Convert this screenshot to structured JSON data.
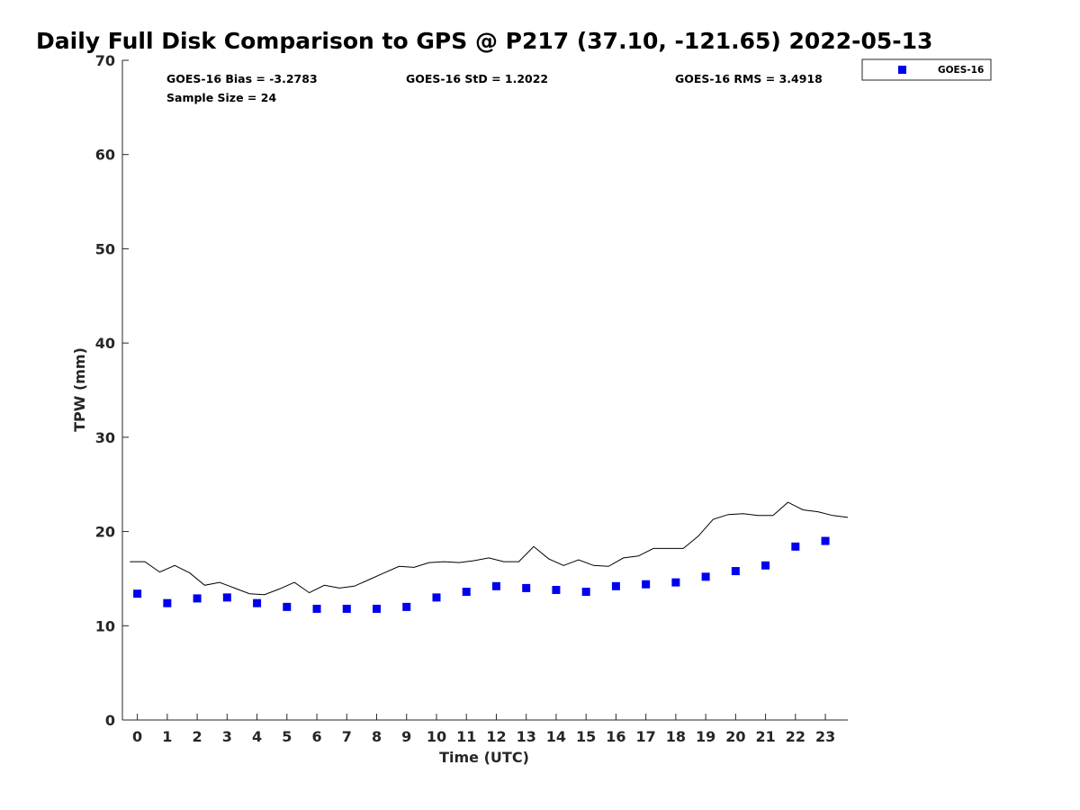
{
  "chart_data": {
    "type": "scatter",
    "title": "Daily Full Disk Comparison to GPS @ P217 (37.10, -121.65) 2022-05-13",
    "xlabel": "Time (UTC)",
    "ylabel": "TPW (mm)",
    "xlim": [
      -0.5,
      23.75
    ],
    "ylim": [
      0,
      70
    ],
    "x_ticks": [
      0,
      1,
      2,
      3,
      4,
      5,
      6,
      7,
      8,
      9,
      10,
      11,
      12,
      13,
      14,
      15,
      16,
      17,
      18,
      19,
      20,
      21,
      22,
      23
    ],
    "y_ticks": [
      0,
      10,
      20,
      30,
      40,
      50,
      60,
      70
    ],
    "grid": false,
    "legend_position": "outside top-right",
    "stats": {
      "bias": "GOES-16 Bias = -3.2783",
      "std": "GOES-16 StD = 1.2022",
      "rms": "GOES-16 RMS = 3.4918",
      "sample_size": "Sample Size = 24"
    },
    "series": [
      {
        "name": "GOES-16",
        "kind": "marker",
        "marker": "square",
        "color": "#0000ee",
        "x": [
          0,
          1,
          2,
          3,
          4,
          5,
          6,
          7,
          8,
          9,
          10,
          11,
          12,
          13,
          14,
          15,
          16,
          17,
          18,
          19,
          20,
          21,
          22,
          23
        ],
        "y": [
          13.4,
          12.4,
          12.9,
          13.0,
          12.4,
          12.0,
          11.8,
          11.8,
          11.8,
          12.0,
          13.0,
          13.6,
          14.2,
          14.0,
          13.8,
          13.6,
          14.2,
          14.4,
          14.6,
          15.2,
          15.8,
          16.4,
          18.4,
          19.0
        ]
      },
      {
        "kind": "line",
        "color": "#000000",
        "x": [
          -0.25,
          0.25,
          0.75,
          1.25,
          1.75,
          2.25,
          2.75,
          3.25,
          3.75,
          4.25,
          4.75,
          5.25,
          5.75,
          6.25,
          6.75,
          7.25,
          7.75,
          8.25,
          8.75,
          9.25,
          9.75,
          10.25,
          10.75,
          11.25,
          11.75,
          12.25,
          12.75,
          13.25,
          13.75,
          14.25,
          14.75,
          15.25,
          15.75,
          16.25,
          16.75,
          17.25,
          17.75,
          18.25,
          18.75,
          19.25,
          19.75,
          20.25,
          20.75,
          21.25,
          21.75,
          22.25,
          22.75,
          23.25,
          23.75
        ],
        "y": [
          16.8,
          16.8,
          15.7,
          16.4,
          15.6,
          14.3,
          14.6,
          14.0,
          13.4,
          13.3,
          13.9,
          14.6,
          13.5,
          14.3,
          14.0,
          14.2,
          14.9,
          15.6,
          16.3,
          16.2,
          16.7,
          16.8,
          16.7,
          16.9,
          17.2,
          16.8,
          16.8,
          18.4,
          17.1,
          16.4,
          17.0,
          16.4,
          16.3,
          17.2,
          17.4,
          18.2,
          18.2,
          18.2,
          19.5,
          21.3,
          21.8,
          21.9,
          21.7,
          21.7,
          23.1,
          22.3,
          22.1,
          21.7,
          21.5
        ]
      }
    ]
  }
}
